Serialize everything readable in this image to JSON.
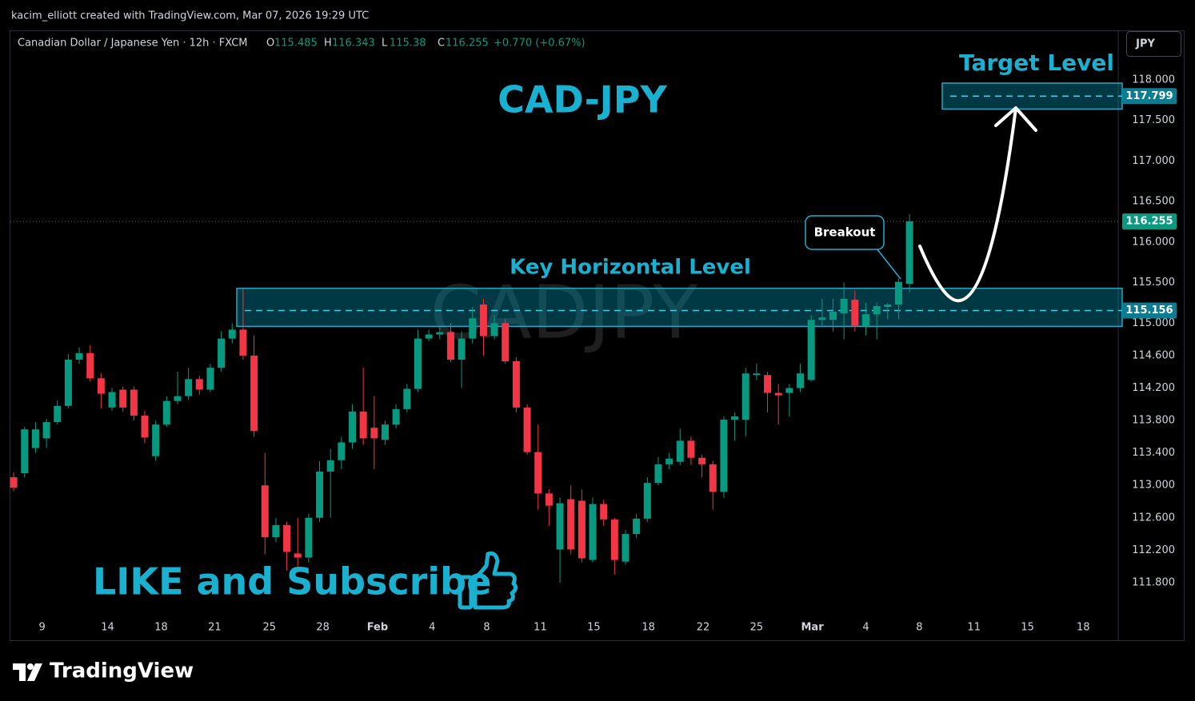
{
  "header": {
    "credit": "kacim_elliott created with TradingView.com, Mar 07, 2026 19:29 UTC",
    "brand": "TradingView"
  },
  "chart_data": {
    "type": "candlestick",
    "symbol_title": "Canadian Dollar / Japanese Yen · 12h · FXCM",
    "ohlc_letters": [
      "O",
      "H",
      "L",
      "C"
    ],
    "change": "+0.770 (+0.67%)",
    "currency": "JPY",
    "watermark": "CADJPY",
    "title": "CAD-JPY",
    "breakout_label": "Breakout",
    "cta": "LIKE and Subscribe",
    "up_color": "#089981",
    "down_color": "#f23645",
    "grid": false,
    "open": [
      113.1,
      113.15,
      113.46,
      113.58,
      113.78,
      113.98,
      114.55,
      114.63,
      114.32,
      113.96,
      114.18,
      114.18,
      113.86,
      113.36,
      113.75,
      114.04,
      114.1,
      114.31,
      114.18,
      114.45,
      114.81,
      114.92,
      114.6,
      113.0,
      112.36,
      112.51,
      112.16,
      112.11,
      112.6,
      113.17,
      113.31,
      113.53,
      113.91,
      113.71,
      113.56,
      113.75,
      113.94,
      114.19,
      114.81,
      114.86,
      114.89,
      114.55,
      114.81,
      115.23,
      114.84,
      115.0,
      114.53,
      113.96,
      113.41,
      112.9,
      112.21,
      112.83,
      112.81,
      112.08,
      112.77,
      112.58,
      112.06,
      112.4,
      112.59,
      113.03,
      113.26,
      113.29,
      113.55,
      113.34,
      113.26,
      112.92,
      113.81,
      113.81,
      114.36,
      114.36,
      114.14,
      114.14,
      114.2,
      114.3,
      115.04,
      115.04,
      115.12,
      115.29,
      114.96,
      115.11,
      115.2,
      115.23,
      115.485
    ],
    "high": [
      113.16,
      113.72,
      113.78,
      113.82,
      114.05,
      114.62,
      114.7,
      114.73,
      114.38,
      114.2,
      114.22,
      114.22,
      113.92,
      113.8,
      114.1,
      114.4,
      114.45,
      114.35,
      114.5,
      114.9,
      115.0,
      115.42,
      114.85,
      113.4,
      112.6,
      112.55,
      112.6,
      112.65,
      113.3,
      113.45,
      113.6,
      114.0,
      114.45,
      114.1,
      113.8,
      114.0,
      114.25,
      114.92,
      114.92,
      114.95,
      115.0,
      114.9,
      115.2,
      115.3,
      115.1,
      115.05,
      114.58,
      114.0,
      113.75,
      112.95,
      112.85,
      113.0,
      112.95,
      112.85,
      112.82,
      112.6,
      112.45,
      112.65,
      113.1,
      113.35,
      113.4,
      113.7,
      113.6,
      113.38,
      113.3,
      113.85,
      113.9,
      114.45,
      114.5,
      114.4,
      114.25,
      114.25,
      114.5,
      115.1,
      115.3,
      115.3,
      115.5,
      115.4,
      115.25,
      115.25,
      115.25,
      115.55,
      116.343
    ],
    "low": [
      112.93,
      113.1,
      113.4,
      113.46,
      113.75,
      113.95,
      114.5,
      114.28,
      113.95,
      113.92,
      113.91,
      113.8,
      113.52,
      113.3,
      113.72,
      114.0,
      114.05,
      114.12,
      114.15,
      114.4,
      114.75,
      114.55,
      113.6,
      112.15,
      112.3,
      111.95,
      112.0,
      112.05,
      112.55,
      112.6,
      113.2,
      113.45,
      113.5,
      113.2,
      113.5,
      113.7,
      113.9,
      114.15,
      114.78,
      114.8,
      114.52,
      114.2,
      114.75,
      114.6,
      114.8,
      114.5,
      113.9,
      113.38,
      112.7,
      112.5,
      111.8,
      112.15,
      112.05,
      112.05,
      112.5,
      111.9,
      112.02,
      112.35,
      112.55,
      113.0,
      113.2,
      113.25,
      113.25,
      113.1,
      112.7,
      112.85,
      113.55,
      113.6,
      114.3,
      113.9,
      113.75,
      113.85,
      114.15,
      114.28,
      114.95,
      114.9,
      114.8,
      114.9,
      114.85,
      114.8,
      115.05,
      115.05,
      115.38
    ],
    "close": [
      112.97,
      113.69,
      113.69,
      113.78,
      113.98,
      114.55,
      114.63,
      114.32,
      114.13,
      114.15,
      113.96,
      113.86,
      113.59,
      113.75,
      114.04,
      114.1,
      114.31,
      114.18,
      114.45,
      114.81,
      114.92,
      114.6,
      113.67,
      112.36,
      112.51,
      112.18,
      112.11,
      112.6,
      113.17,
      113.31,
      113.53,
      113.91,
      113.58,
      113.58,
      113.75,
      113.94,
      114.19,
      114.81,
      114.86,
      114.89,
      114.55,
      114.81,
      115.06,
      114.84,
      115.0,
      114.53,
      113.96,
      113.41,
      112.9,
      112.75,
      112.78,
      112.21,
      112.1,
      112.77,
      112.58,
      112.08,
      112.4,
      112.59,
      113.03,
      113.26,
      113.33,
      113.55,
      113.34,
      113.26,
      112.92,
      113.81,
      113.85,
      114.38,
      114.38,
      114.14,
      114.11,
      114.2,
      114.38,
      115.04,
      115.07,
      115.14,
      115.3,
      114.97,
      115.11,
      115.21,
      115.23,
      115.51,
      116.255
    ],
    "xlim": [
      -0.3,
      101.1
    ],
    "xticks": [
      {
        "value": 2.6,
        "label": "9"
      },
      {
        "value": 8.6,
        "label": "14"
      },
      {
        "value": 13.5,
        "label": "18"
      },
      {
        "value": 18.4,
        "label": "21"
      },
      {
        "value": 23.4,
        "label": "25"
      },
      {
        "value": 28.3,
        "label": "28"
      },
      {
        "value": 33.3,
        "label": "Feb"
      },
      {
        "value": 38.3,
        "label": "4"
      },
      {
        "value": 43.3,
        "label": "8"
      },
      {
        "value": 48.2,
        "label": "11"
      },
      {
        "value": 53.1,
        "label": "15"
      },
      {
        "value": 58.1,
        "label": "18"
      },
      {
        "value": 63.1,
        "label": "22"
      },
      {
        "value": 68.0,
        "label": "25"
      },
      {
        "value": 73.1,
        "label": "Mar"
      },
      {
        "value": 78.0,
        "label": "4"
      },
      {
        "value": 82.9,
        "label": "8"
      },
      {
        "value": 87.9,
        "label": "11"
      },
      {
        "value": 92.8,
        "label": "15"
      },
      {
        "value": 97.9,
        "label": "18"
      }
    ],
    "ylim": [
      111.1,
      118.61
    ],
    "yticks": [
      {
        "value": 118,
        "label": "118.000"
      },
      {
        "value": 117.5,
        "label": "117.500"
      },
      {
        "value": 117,
        "label": "117.000"
      },
      {
        "value": 116.5,
        "label": "116.500"
      },
      {
        "value": 116,
        "label": "116.000"
      },
      {
        "value": 115.5,
        "label": "115.500"
      },
      {
        "value": 115,
        "label": "115.000"
      },
      {
        "value": 114.6,
        "label": "114.600"
      },
      {
        "value": 114.2,
        "label": "114.200"
      },
      {
        "value": 113.8,
        "label": "113.800"
      },
      {
        "value": 113.4,
        "label": "113.400"
      },
      {
        "value": 113,
        "label": "113.000"
      },
      {
        "value": 112.6,
        "label": "112.600"
      },
      {
        "value": 112.2,
        "label": "112.200"
      },
      {
        "value": 111.8,
        "label": "111.800"
      }
    ],
    "levels": [
      {
        "name": "Key Horizontal Level",
        "value": 115.156,
        "zone": [
          114.96,
          115.43
        ]
      },
      {
        "name": "Target Level",
        "value": 117.799,
        "zone": [
          117.64,
          117.96
        ]
      }
    ]
  }
}
